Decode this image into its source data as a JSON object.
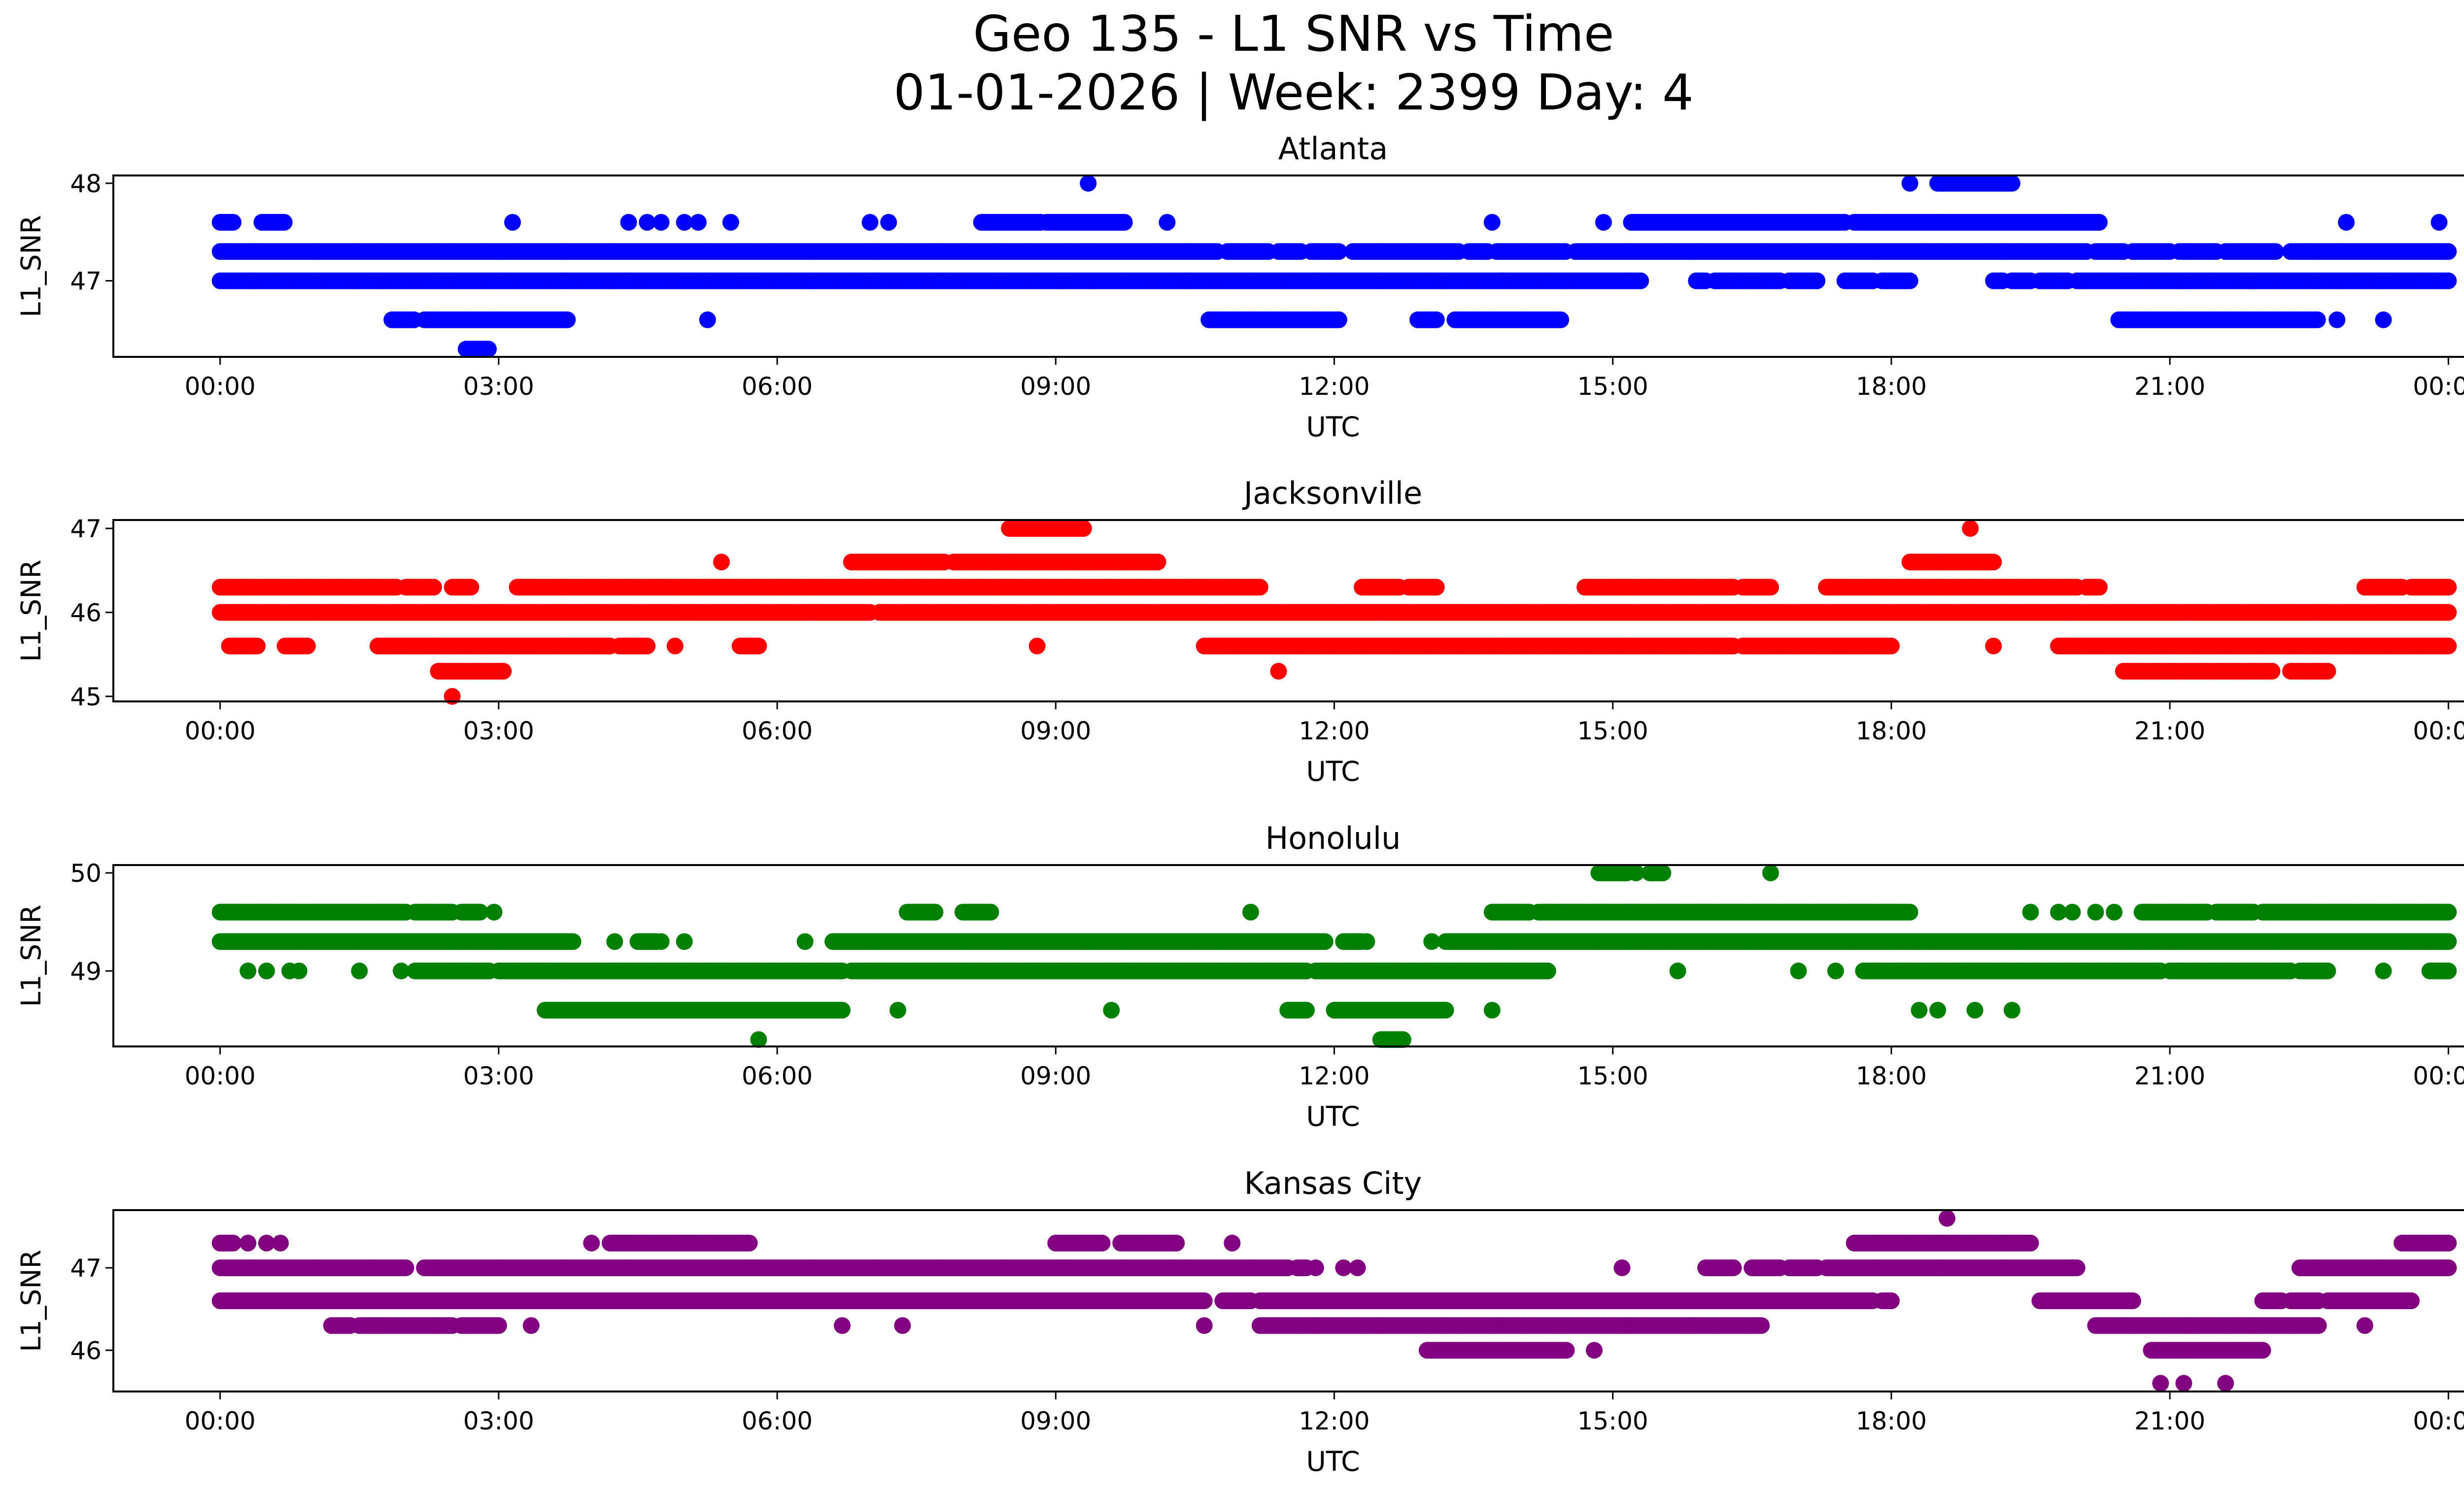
{
  "figure": {
    "title_line1": "Geo 135 - L1 SNR vs Time",
    "title_line2": "01-01-2026 | Week: 2399 Day: 4"
  },
  "chart_data": [
    {
      "type": "scatter",
      "title": "Atlanta",
      "xlabel": "UTC",
      "ylabel": "L1_SNR",
      "color": "#0000ff",
      "xlim_hours": [
        -1.15,
        25.15
      ],
      "ylim": [
        46.22,
        48.08
      ],
      "yticks": [
        47,
        48
      ],
      "xtick_labels": [
        "00:00",
        "03:00",
        "06:00",
        "09:00",
        "12:00",
        "15:00",
        "18:00",
        "21:00",
        "00:00"
      ],
      "levels": [
        {
          "y": 47.3,
          "ranges": [
            [
              0.0,
              10.75
            ],
            [
              10.85,
              11.3
            ],
            [
              11.4,
              11.65
            ],
            [
              11.75,
              12.05
            ],
            [
              12.2,
              13.35
            ],
            [
              13.45,
              13.65
            ],
            [
              13.75,
              14.5
            ],
            [
              14.6,
              20.1
            ],
            [
              20.2,
              20.5
            ],
            [
              20.6,
              21.0
            ],
            [
              21.1,
              21.5
            ],
            [
              21.6,
              22.15
            ],
            [
              22.3,
              24.0
            ]
          ]
        },
        {
          "y": 47.0,
          "ranges": [
            [
              0.0,
              15.3
            ],
            [
              15.9,
              16.0
            ],
            [
              16.1,
              16.8
            ],
            [
              16.9,
              17.2
            ],
            [
              17.5,
              17.8
            ],
            [
              17.9,
              18.2
            ],
            [
              19.1,
              19.2
            ],
            [
              19.3,
              19.5
            ],
            [
              19.6,
              19.9
            ],
            [
              20.0,
              24.0
            ]
          ]
        },
        {
          "y": 47.6,
          "ranges": [
            [
              0.0,
              0.15
            ],
            [
              0.45,
              0.7
            ],
            [
              8.2,
              8.85
            ],
            [
              8.9,
              9.75
            ],
            [
              15.2,
              17.5
            ],
            [
              17.6,
              20.25
            ]
          ]
        },
        {
          "y": 46.6,
          "ranges": [
            [
              1.85,
              2.1
            ],
            [
              2.2,
              3.75
            ],
            [
              10.65,
              12.05
            ],
            [
              12.9,
              13.1
            ],
            [
              13.3,
              14.45
            ],
            [
              20.45,
              22.6
            ]
          ]
        },
        {
          "y": 48.0,
          "ranges": [
            [
              18.5,
              19.3
            ]
          ]
        },
        {
          "y": 46.3,
          "ranges": [
            [
              2.65,
              2.9
            ]
          ]
        }
      ],
      "isolated_points": [
        [
          0.1,
          47.6
        ],
        [
          3.15,
          47.6
        ],
        [
          4.4,
          47.6
        ],
        [
          4.6,
          47.6
        ],
        [
          4.75,
          47.6
        ],
        [
          5.0,
          47.6
        ],
        [
          5.15,
          47.6
        ],
        [
          5.5,
          47.6
        ],
        [
          7.0,
          47.6
        ],
        [
          7.2,
          47.6
        ],
        [
          10.2,
          47.6
        ],
        [
          13.7,
          47.6
        ],
        [
          14.9,
          47.6
        ],
        [
          22.9,
          47.6
        ],
        [
          23.9,
          47.6
        ],
        [
          9.35,
          48.0
        ],
        [
          18.2,
          48.0
        ],
        [
          5.25,
          46.6
        ],
        [
          22.8,
          46.6
        ],
        [
          23.3,
          46.6
        ]
      ]
    },
    {
      "type": "scatter",
      "title": "Jacksonville",
      "xlabel": "UTC",
      "ylabel": "L1_SNR",
      "color": "#ff0000",
      "xlim_hours": [
        -1.15,
        25.15
      ],
      "ylim": [
        44.94,
        47.1
      ],
      "yticks": [
        45,
        46,
        47
      ],
      "xtick_labels": [
        "00:00",
        "03:00",
        "06:00",
        "09:00",
        "12:00",
        "15:00",
        "18:00",
        "21:00",
        "00:00"
      ],
      "levels": [
        {
          "y": 46.3,
          "ranges": [
            [
              0.0,
              1.9
            ],
            [
              2.0,
              2.3
            ],
            [
              2.5,
              2.7
            ],
            [
              3.2,
              11.2
            ],
            [
              12.3,
              12.7
            ],
            [
              12.8,
              13.1
            ],
            [
              14.7,
              16.3
            ],
            [
              16.4,
              16.7
            ],
            [
              17.3,
              20.0
            ],
            [
              20.1,
              20.25
            ],
            [
              23.1,
              23.5
            ],
            [
              23.6,
              24.0
            ]
          ]
        },
        {
          "y": 46.0,
          "ranges": [
            [
              0.0,
              7.0
            ],
            [
              7.1,
              24.0
            ]
          ]
        },
        {
          "y": 45.6,
          "ranges": [
            [
              0.1,
              0.4
            ],
            [
              0.7,
              0.95
            ],
            [
              1.7,
              4.2
            ],
            [
              4.3,
              4.6
            ],
            [
              5.6,
              5.8
            ],
            [
              10.6,
              16.3
            ],
            [
              16.4,
              18.0
            ],
            [
              19.8,
              24.0
            ]
          ]
        },
        {
          "y": 46.6,
          "ranges": [
            [
              6.8,
              7.8
            ],
            [
              7.9,
              10.1
            ],
            [
              18.2,
              19.1
            ]
          ]
        },
        {
          "y": 47.0,
          "ranges": [
            [
              8.5,
              9.3
            ]
          ]
        },
        {
          "y": 45.3,
          "ranges": [
            [
              2.35,
              3.05
            ],
            [
              20.5,
              22.1
            ],
            [
              22.3,
              22.7
            ]
          ]
        }
      ],
      "isolated_points": [
        [
          5.4,
          46.6
        ],
        [
          6.0,
          46.3
        ],
        [
          18.85,
          47.0
        ],
        [
          2.5,
          45.0
        ],
        [
          4.9,
          45.6
        ],
        [
          8.8,
          45.6
        ],
        [
          11.4,
          45.3
        ],
        [
          19.1,
          45.6
        ]
      ]
    },
    {
      "type": "scatter",
      "title": "Honolulu",
      "xlabel": "UTC",
      "ylabel": "L1_SNR",
      "color": "#008000",
      "xlim_hours": [
        -1.15,
        25.15
      ],
      "ylim": [
        48.23,
        50.08
      ],
      "yticks": [
        49,
        50
      ],
      "xtick_labels": [
        "00:00",
        "03:00",
        "06:00",
        "09:00",
        "12:00",
        "15:00",
        "18:00",
        "21:00",
        "00:00"
      ],
      "levels": [
        {
          "y": 49.3,
          "ranges": [
            [
              0.0,
              3.8
            ],
            [
              4.5,
              4.7
            ],
            [
              6.6,
              11.9
            ],
            [
              12.1,
              12.3
            ],
            [
              13.2,
              24.0
            ]
          ]
        },
        {
          "y": 49.6,
          "ranges": [
            [
              0.0,
              2.0
            ],
            [
              2.1,
              2.5
            ],
            [
              2.6,
              2.8
            ],
            [
              7.4,
              7.7
            ],
            [
              8.0,
              8.3
            ],
            [
              13.7,
              14.1
            ],
            [
              14.2,
              18.2
            ],
            [
              20.7,
              21.4
            ],
            [
              21.5,
              21.9
            ],
            [
              22.0,
              24.0
            ]
          ]
        },
        {
          "y": 49.0,
          "ranges": [
            [
              2.1,
              2.9
            ],
            [
              3.0,
              6.7
            ],
            [
              6.8,
              11.7
            ],
            [
              11.8,
              14.3
            ],
            [
              17.7,
              20.9
            ],
            [
              21.0,
              22.3
            ],
            [
              22.4,
              22.7
            ],
            [
              23.8,
              24.0
            ]
          ]
        },
        {
          "y": 48.6,
          "ranges": [
            [
              3.5,
              6.7
            ],
            [
              11.5,
              11.7
            ],
            [
              12.0,
              13.2
            ]
          ]
        },
        {
          "y": 50.0,
          "ranges": [
            [
              14.85,
              15.15
            ],
            [
              15.4,
              15.55
            ]
          ]
        },
        {
          "y": 48.3,
          "ranges": [
            [
              12.5,
              12.75
            ]
          ]
        }
      ],
      "isolated_points": [
        [
          0.3,
          49.0
        ],
        [
          0.5,
          49.0
        ],
        [
          0.75,
          49.0
        ],
        [
          0.85,
          49.0
        ],
        [
          1.5,
          49.0
        ],
        [
          1.95,
          49.0
        ],
        [
          4.25,
          49.3
        ],
        [
          4.75,
          49.3
        ],
        [
          5.0,
          49.3
        ],
        [
          6.3,
          49.3
        ],
        [
          12.35,
          49.3
        ],
        [
          13.05,
          49.3
        ],
        [
          2.95,
          49.6
        ],
        [
          11.1,
          49.6
        ],
        [
          19.5,
          49.6
        ],
        [
          19.8,
          49.6
        ],
        [
          19.95,
          49.6
        ],
        [
          20.2,
          49.6
        ],
        [
          20.4,
          49.6
        ],
        [
          15.7,
          49.0
        ],
        [
          17.0,
          49.0
        ],
        [
          17.4,
          49.0
        ],
        [
          23.3,
          49.0
        ],
        [
          5.8,
          48.3
        ],
        [
          7.3,
          48.6
        ],
        [
          9.6,
          48.6
        ],
        [
          13.7,
          48.6
        ],
        [
          15.25,
          50.0
        ],
        [
          16.7,
          50.0
        ],
        [
          18.3,
          48.6
        ],
        [
          18.5,
          48.6
        ],
        [
          18.9,
          48.6
        ],
        [
          19.3,
          48.6
        ]
      ]
    },
    {
      "type": "scatter",
      "title": "Kansas City",
      "xlabel": "UTC",
      "ylabel": "L1_SNR",
      "color": "#800080",
      "xlim_hours": [
        -1.15,
        25.15
      ],
      "ylim": [
        45.5,
        47.7
      ],
      "yticks": [
        46,
        47
      ],
      "xtick_labels": [
        "00:00",
        "03:00",
        "06:00",
        "09:00",
        "12:00",
        "15:00",
        "18:00",
        "21:00",
        "00:00"
      ],
      "levels": [
        {
          "y": 47.0,
          "ranges": [
            [
              0.0,
              2.0
            ],
            [
              2.2,
              11.5
            ],
            [
              11.6,
              11.7
            ],
            [
              16.0,
              16.3
            ],
            [
              16.5,
              16.8
            ],
            [
              16.9,
              17.2
            ],
            [
              17.3,
              20.0
            ],
            [
              22.4,
              24.0
            ]
          ]
        },
        {
          "y": 46.6,
          "ranges": [
            [
              0.0,
              10.6
            ],
            [
              10.8,
              11.1
            ],
            [
              11.2,
              17.8
            ],
            [
              17.9,
              18.0
            ],
            [
              19.6,
              20.6
            ],
            [
              22.0,
              22.2
            ],
            [
              22.3,
              22.6
            ],
            [
              22.7,
              23.6
            ]
          ]
        },
        {
          "y": 46.3,
          "ranges": [
            [
              1.2,
              1.4
            ],
            [
              1.5,
              2.5
            ],
            [
              2.6,
              3.0
            ],
            [
              11.2,
              16.6
            ],
            [
              20.2,
              22.6
            ]
          ]
        },
        {
          "y": 47.3,
          "ranges": [
            [
              0.0,
              0.15
            ],
            [
              4.2,
              5.7
            ],
            [
              9.0,
              9.5
            ],
            [
              9.7,
              10.3
            ],
            [
              17.6,
              19.5
            ],
            [
              23.5,
              24.0
            ]
          ]
        },
        {
          "y": 46.0,
          "ranges": [
            [
              13.0,
              14.5
            ],
            [
              20.8,
              22.0
            ]
          ]
        }
      ],
      "isolated_points": [
        [
          0.3,
          47.3
        ],
        [
          0.5,
          47.3
        ],
        [
          0.65,
          47.3
        ],
        [
          4.0,
          47.3
        ],
        [
          10.9,
          47.3
        ],
        [
          3.35,
          46.3
        ],
        [
          6.7,
          46.3
        ],
        [
          7.35,
          46.3
        ],
        [
          10.6,
          46.3
        ],
        [
          11.8,
          47.0
        ],
        [
          12.1,
          47.0
        ],
        [
          12.25,
          47.0
        ],
        [
          14.4,
          46.6
        ],
        [
          14.75,
          46.6
        ],
        [
          14.8,
          46.0
        ],
        [
          15.1,
          47.0
        ],
        [
          18.6,
          47.6
        ],
        [
          21.15,
          45.6
        ],
        [
          21.6,
          45.6
        ],
        [
          20.9,
          45.6
        ],
        [
          23.1,
          46.3
        ],
        [
          24.0,
          47.0
        ]
      ]
    }
  ]
}
